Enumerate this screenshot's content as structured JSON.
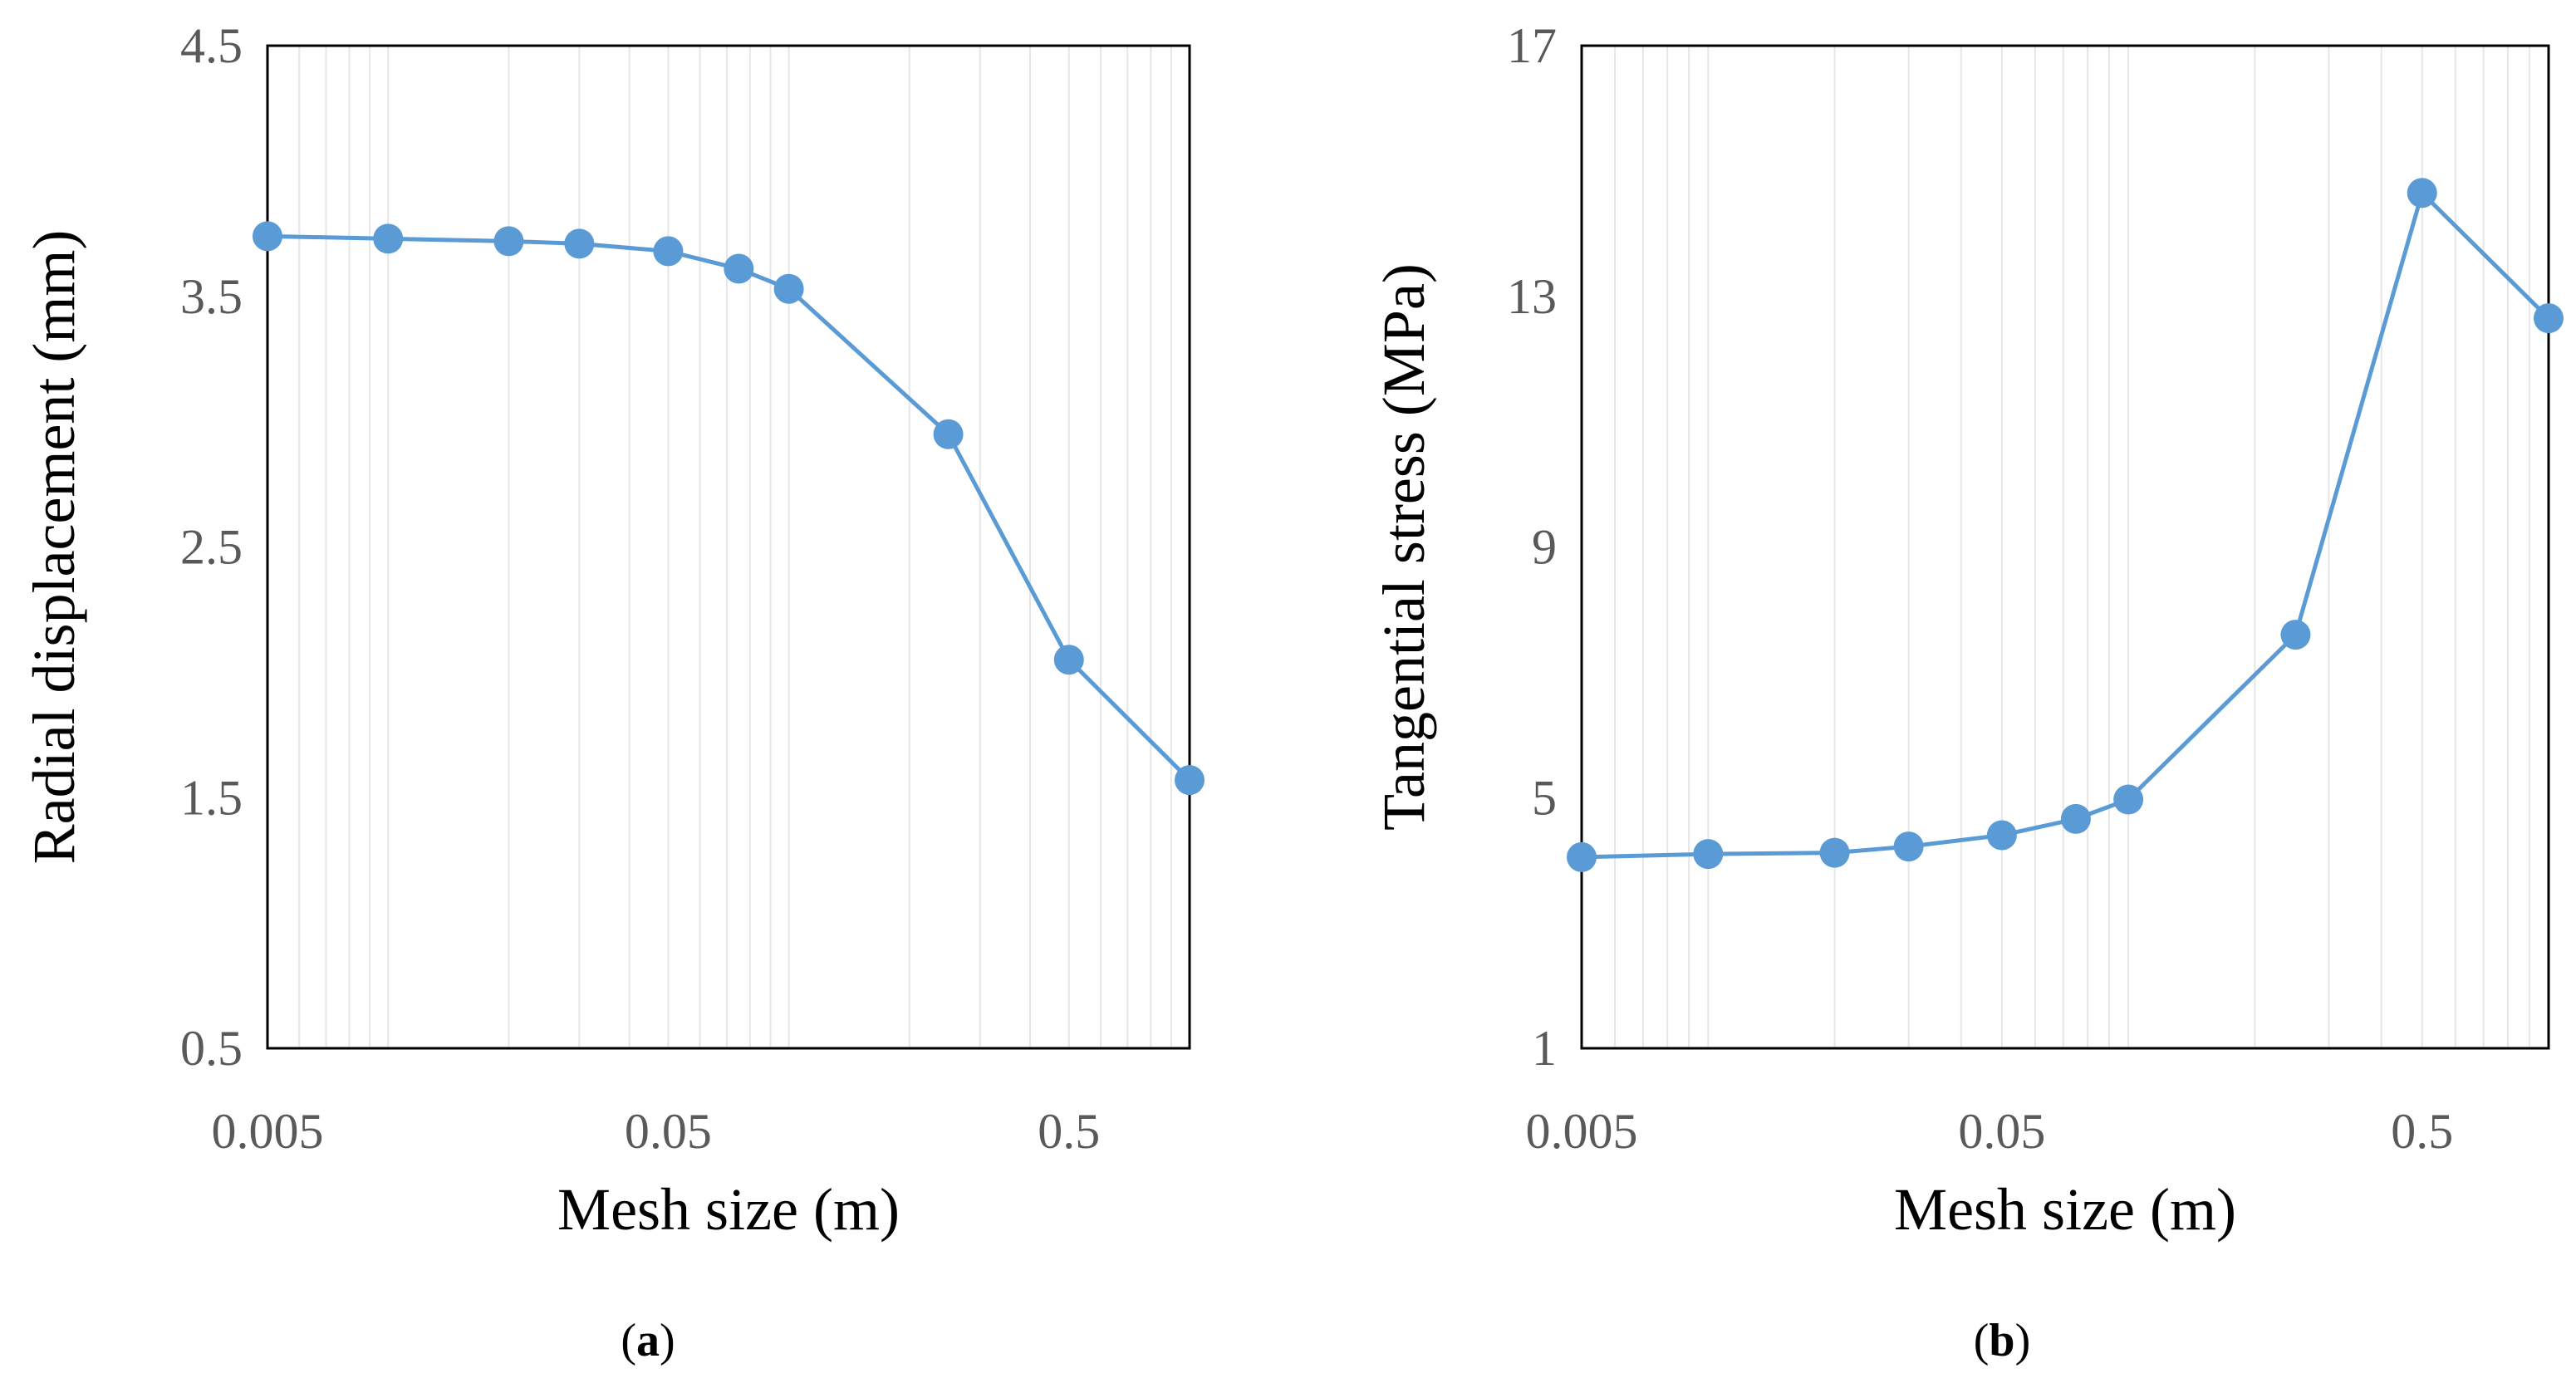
{
  "chart_data": [
    {
      "type": "line",
      "panel_label": "a",
      "title": "",
      "xlabel": "Mesh size (m)",
      "ylabel": "Radial displacement (mm)",
      "xscale": "log",
      "xlim": [
        0.005,
        1
      ],
      "ylim": [
        0.5,
        4.5
      ],
      "x_ticks": [
        0.005,
        0.05,
        0.5
      ],
      "x_tick_labels": [
        "0.005",
        "0.05",
        "0.5"
      ],
      "y_ticks": [
        0.5,
        1.5,
        2.5,
        3.5,
        4.5
      ],
      "y_tick_labels": [
        "0.5",
        "1.5",
        "2.5",
        "3.5",
        "4.5"
      ],
      "grid": "vertical minor",
      "series": [
        {
          "name": "Radial displacement",
          "color": "#5b9bd5",
          "x": [
            0.005,
            0.01,
            0.02,
            0.03,
            0.05,
            0.075,
            0.1,
            0.25,
            0.5,
            1
          ],
          "y": [
            3.74,
            3.73,
            3.72,
            3.71,
            3.68,
            3.61,
            3.53,
            2.95,
            2.05,
            1.57
          ]
        }
      ]
    },
    {
      "type": "line",
      "panel_label": "b",
      "title": "",
      "xlabel": "Mesh size (m)",
      "ylabel": "Tangential stress (MPa)",
      "xscale": "log",
      "xlim": [
        0.005,
        1
      ],
      "ylim": [
        1,
        17
      ],
      "x_ticks": [
        0.005,
        0.05,
        0.5
      ],
      "x_tick_labels": [
        "0.005",
        "0.05",
        "0.5"
      ],
      "y_ticks": [
        1,
        5,
        9,
        13,
        17
      ],
      "y_tick_labels": [
        "1",
        "5",
        "9",
        "13",
        "17"
      ],
      "grid": "vertical minor",
      "series": [
        {
          "name": "Tangential stress",
          "color": "#5b9bd5",
          "x": [
            0.005,
            0.01,
            0.02,
            0.03,
            0.05,
            0.075,
            0.1,
            0.25,
            0.5,
            1
          ],
          "y": [
            4.05,
            4.1,
            4.12,
            4.22,
            4.4,
            4.66,
            4.97,
            7.6,
            14.65,
            12.65
          ]
        }
      ]
    }
  ]
}
